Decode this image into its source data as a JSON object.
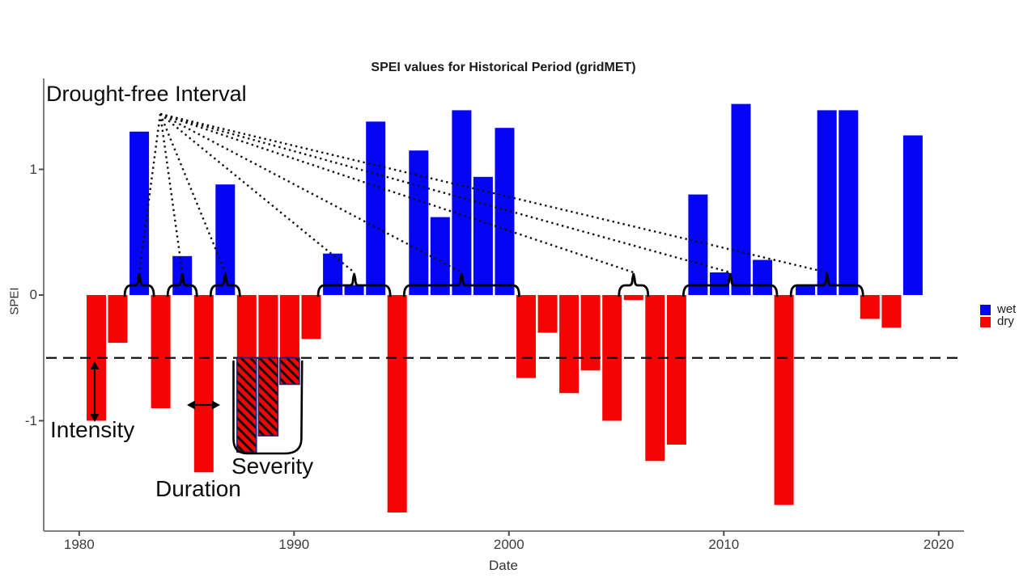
{
  "title": "SPEI values for Historical Period (gridMET)",
  "axes": {
    "x_label": "Date",
    "y_label": "SPEI",
    "x_ticks": [
      "1980",
      "1990",
      "2000",
      "2010",
      "2020"
    ],
    "x_tick_years": [
      1980,
      1990,
      2000,
      2010,
      2020
    ],
    "y_ticks": [
      "1",
      "0",
      "-1"
    ],
    "y_tick_values": [
      1,
      0,
      -1
    ]
  },
  "legend": {
    "items": [
      {
        "label": "wet",
        "color": "#0404F6"
      },
      {
        "label": "dry",
        "color": "#F60404"
      }
    ]
  },
  "annotations": {
    "drought_free": "Drought-free Interval",
    "intensity": "Intensity",
    "duration": "Duration",
    "severity": "Severity"
  },
  "colors": {
    "wet": "#0404F6",
    "dry": "#F60404",
    "hatch_border": "#23237A",
    "hatch_stripe": "#111111",
    "line": "#111111",
    "axis": "#808080"
  },
  "chart_data": {
    "type": "bar",
    "title": "SPEI values for Historical Period (gridMET)",
    "xlabel": "Date",
    "ylabel": "SPEI",
    "xlim": [
      1979,
      2021
    ],
    "ylim": [
      -1.9,
      1.6
    ],
    "grid": false,
    "legend_position": "right",
    "threshold_dashed_line": -0.5,
    "x": [
      1980,
      1981,
      1982,
      1983,
      1984,
      1985,
      1986,
      1987,
      1988,
      1989,
      1990,
      1991,
      1992,
      1993,
      1994,
      1995,
      1996,
      1997,
      1998,
      1999,
      2000,
      2001,
      2002,
      2003,
      2004,
      2005,
      2006,
      2007,
      2008,
      2009,
      2010,
      2011,
      2012,
      2013,
      2014,
      2015,
      2016,
      2017,
      2018
    ],
    "values": [
      -1.0,
      -0.38,
      1.3,
      -0.9,
      0.31,
      -1.41,
      0.88,
      -1.25,
      -1.12,
      -0.71,
      -0.35,
      0.33,
      0.08,
      1.38,
      -1.73,
      1.15,
      0.62,
      1.47,
      0.94,
      1.33,
      -0.66,
      -0.3,
      -0.78,
      -0.6,
      -1.0,
      -0.04,
      -1.32,
      -1.19,
      0.8,
      0.18,
      1.52,
      0.28,
      -1.67,
      0.07,
      1.47,
      1.47,
      -0.19,
      -0.26,
      1.27
    ],
    "series_rule": "positive = wet (blue), negative = dry (red)",
    "hatched_severity_years": [
      1987,
      1988,
      1989
    ],
    "drought_free_intervals": [
      [
        1982,
        1982
      ],
      [
        1984,
        1984
      ],
      [
        1986,
        1986
      ],
      [
        1991,
        1993
      ],
      [
        1995,
        1999
      ],
      [
        2005,
        2005
      ],
      [
        2008,
        2011
      ],
      [
        2013,
        2015
      ]
    ]
  }
}
